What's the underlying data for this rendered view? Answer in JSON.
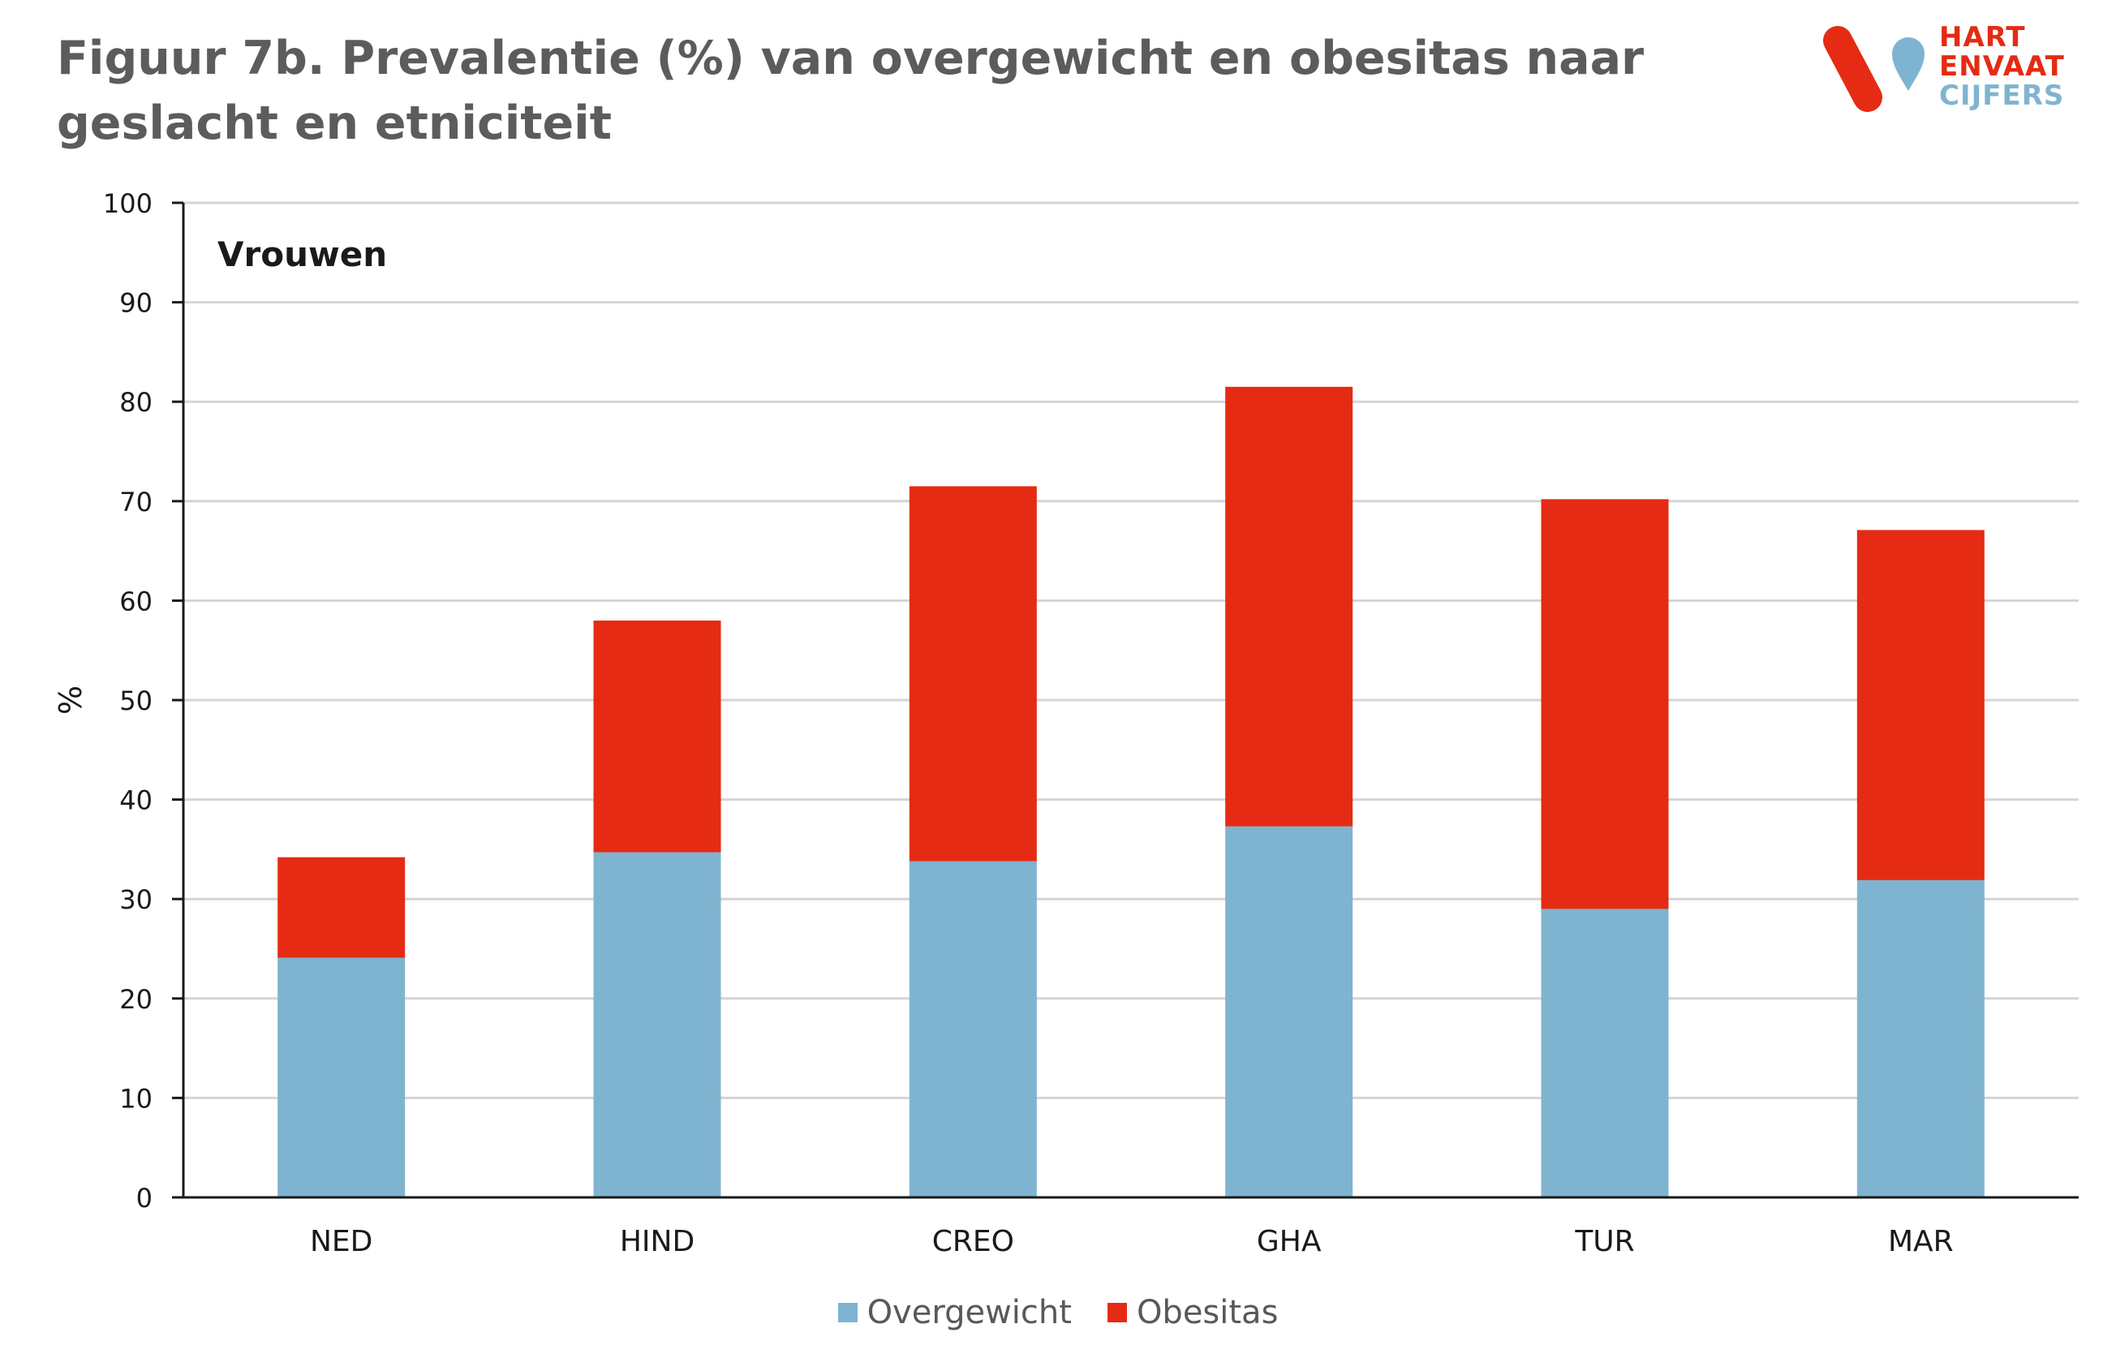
{
  "header": {
    "title": "Figuur 7b. Prevalentie (%) van overgewicht en obesitas naar geslacht en etniciteit"
  },
  "logo": {
    "line1": "HART",
    "line2": "EN",
    "line3": "VAAT",
    "line4": "CIJFERS",
    "colors": {
      "red": "#e52b13",
      "blue": "#7fb4d0"
    }
  },
  "chart_data": {
    "type": "bar",
    "stacked": true,
    "panel_label": "Vrouwen",
    "categories": [
      "NED",
      "HIND",
      "CREO",
      "GHA",
      "TUR",
      "MAR"
    ],
    "series": [
      {
        "name": "Overgewicht",
        "color": "#7fb4d0",
        "values": [
          24.1,
          34.7,
          33.8,
          37.3,
          29.0,
          31.9
        ]
      },
      {
        "name": "Obesitas",
        "color": "#e52b13",
        "values": [
          10.1,
          23.3,
          37.7,
          44.2,
          41.2,
          35.2
        ]
      }
    ],
    "ylabel": "%",
    "xlabel": "",
    "ylim": [
      0,
      100
    ],
    "yticks": [
      0,
      10,
      20,
      30,
      40,
      50,
      60,
      70,
      80,
      90,
      100
    ],
    "grid": true,
    "legend_position": "bottom"
  }
}
